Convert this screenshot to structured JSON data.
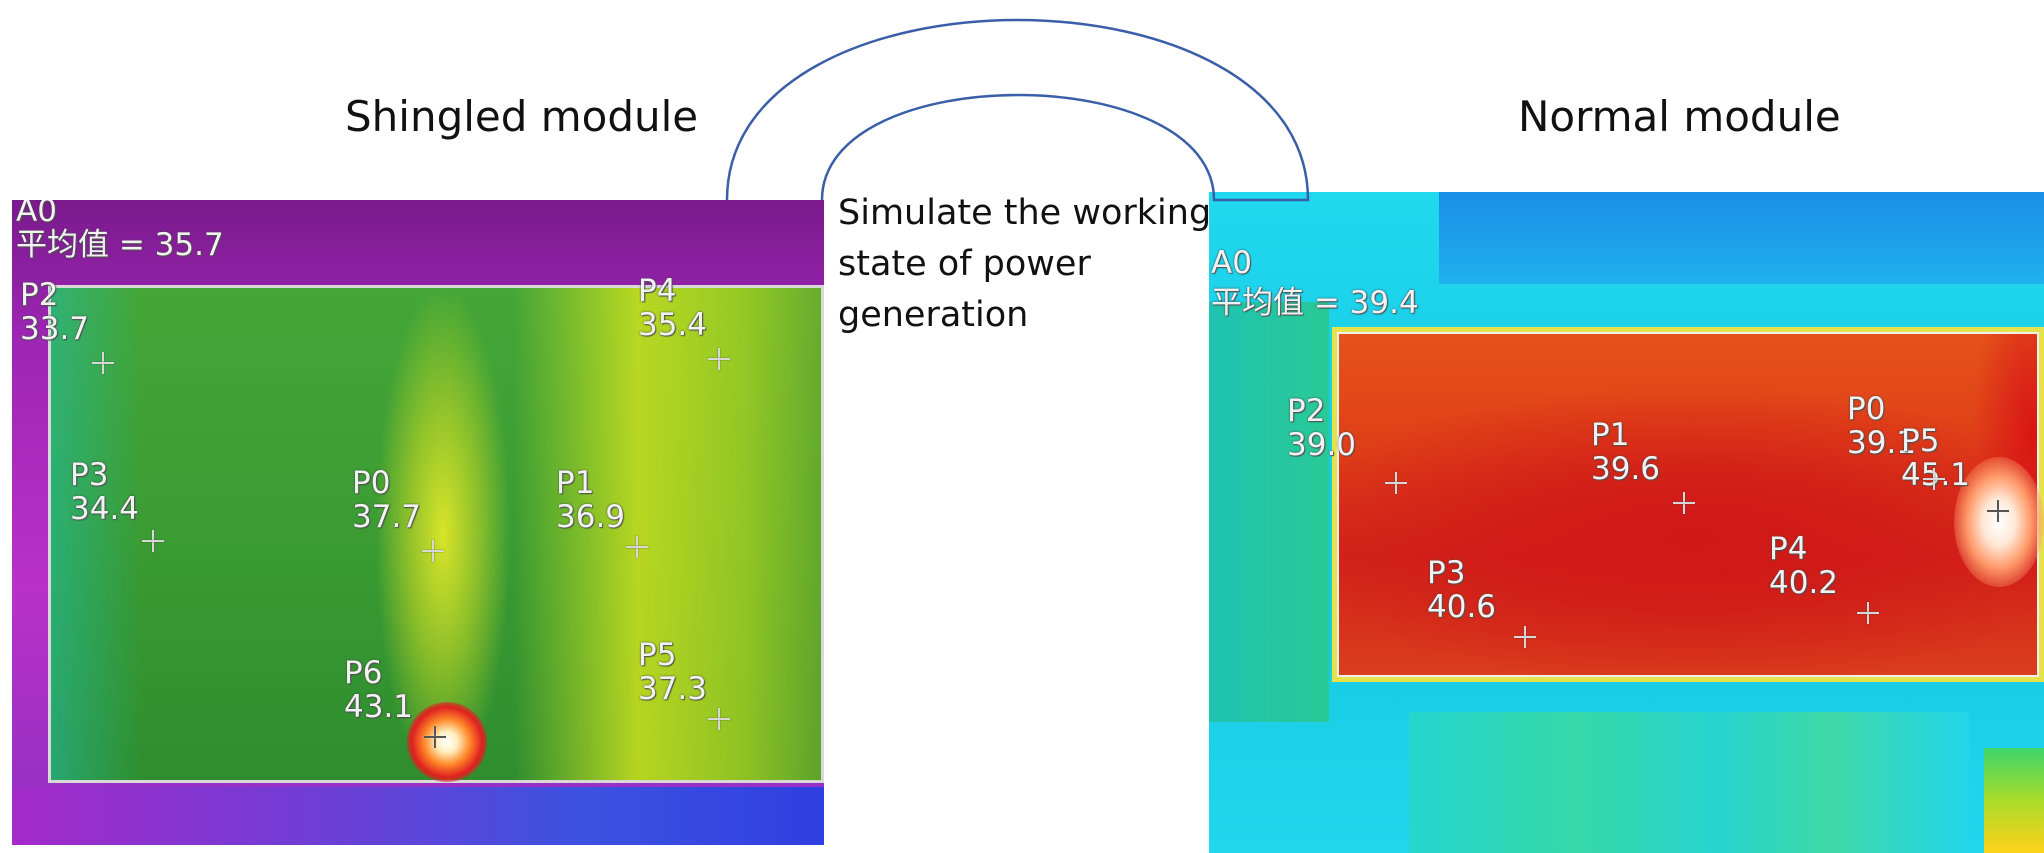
{
  "titles": {
    "left": "Shingled module",
    "right": "Normal module"
  },
  "annotation": {
    "lines": [
      "Simulate the working",
      "state of power",
      "generation"
    ]
  },
  "left_image": {
    "area_name": "A0",
    "average": "平均值 = 35.7",
    "points": [
      {
        "name": "P2",
        "value": "33.7"
      },
      {
        "name": "P4",
        "value": "35.4"
      },
      {
        "name": "P3",
        "value": "34.4"
      },
      {
        "name": "P0",
        "value": "37.7"
      },
      {
        "name": "P1",
        "value": "36.9"
      },
      {
        "name": "P6",
        "value": "43.1"
      },
      {
        "name": "P5",
        "value": "37.3"
      }
    ]
  },
  "right_image": {
    "area_name": "A0",
    "average": "平均值 = 39.4",
    "points": [
      {
        "name": "P2",
        "value": "39.0"
      },
      {
        "name": "P1",
        "value": "39.6"
      },
      {
        "name": "P0",
        "value": "39.1"
      },
      {
        "name": "P5",
        "value": "45.1"
      },
      {
        "name": "P3",
        "value": "40.6"
      },
      {
        "name": "P4",
        "value": "40.2"
      }
    ]
  },
  "colors": {
    "arc_stroke": "#3a5fa8"
  }
}
